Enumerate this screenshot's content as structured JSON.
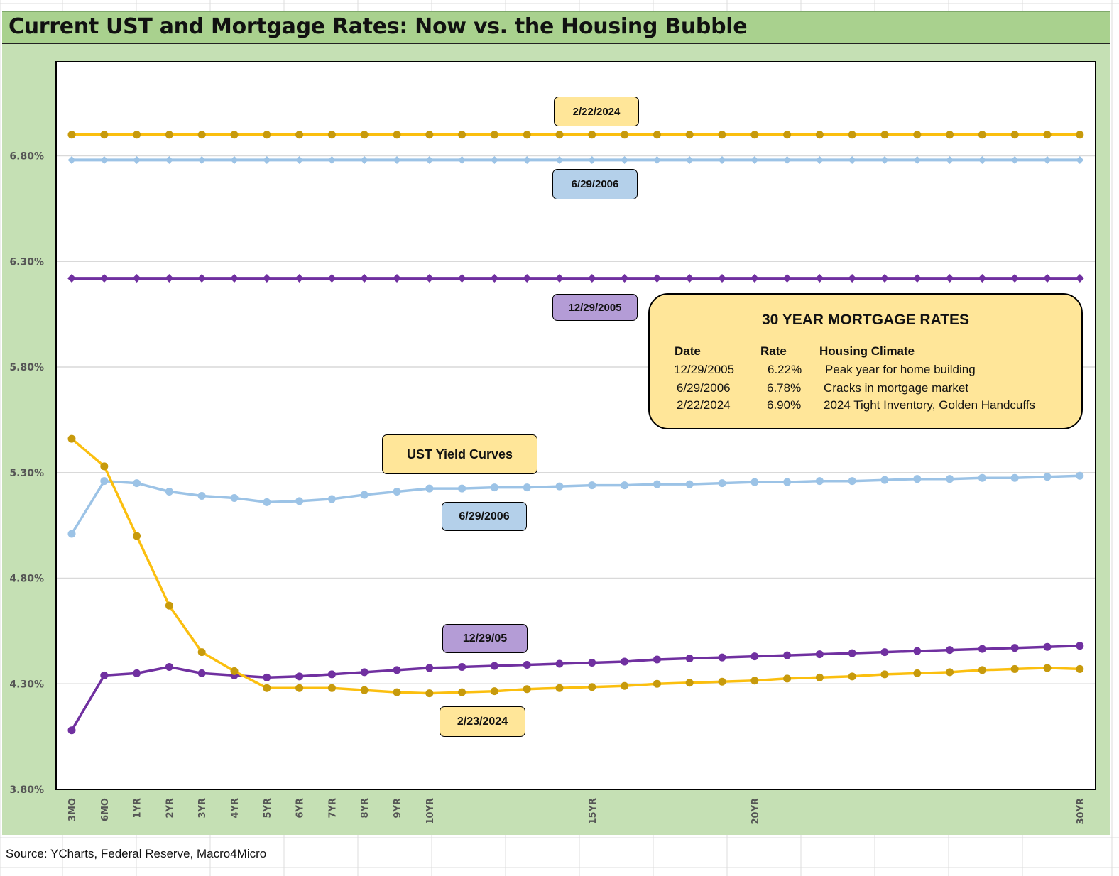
{
  "title": "Current UST and Mortgage Rates: Now vs. the Housing Bubble",
  "source": "Source: YCharts, Federal Reserve, Macro4Micro",
  "colors": {
    "yellow_line": "#fbbf0f",
    "yellow_marker": "#c79a0c",
    "blue_line": "#9cc3e6",
    "purple_line": "#7030a0",
    "title_bg": "#a9d18e",
    "panel_bg": "#c5e0b4"
  },
  "labels": {
    "mortgage_2024": "2/22/2024",
    "mortgage_2006": "6/29/2006",
    "mortgage_2005": "12/29/2005",
    "ust_header": "UST Yield Curves",
    "ust_2006": "6/29/2006",
    "ust_2005": "12/29/05",
    "ust_2024": "2/23/2024"
  },
  "mortgage_table": {
    "title": "30 YEAR MORTGAGE RATES",
    "headers": [
      "Date",
      "Rate",
      "Housing Climate"
    ],
    "rows": [
      [
        "12/29/2005",
        "6.22%",
        "Peak year for home building"
      ],
      [
        "6/29/2006",
        "6.78%",
        "Cracks in mortgage market"
      ],
      [
        "2/22/2024",
        "6.90%",
        "2024 Tight Inventory, Golden Handcuffs"
      ]
    ]
  },
  "chart_data": {
    "type": "line",
    "title": "Current UST and Mortgage Rates: Now vs. the Housing Bubble",
    "xlabel": "",
    "ylabel": "",
    "ylim": [
      3.8,
      7.25
    ],
    "yticks": [
      "3.80%",
      "4.30%",
      "4.80%",
      "5.30%",
      "5.80%",
      "6.30%",
      "6.80%"
    ],
    "grid": "horizontal",
    "x_tick_labels": [
      "3MO",
      "6MO",
      "1YR",
      "2YR",
      "3YR",
      "4YR",
      "5YR",
      "6YR",
      "7YR",
      "8YR",
      "9YR",
      "10YR",
      "",
      "",
      "",
      "",
      "15YR",
      "",
      "",
      "",
      "",
      "20YR",
      "",
      "",
      "",
      "",
      "",
      "",
      "",
      "",
      "",
      "30YR"
    ],
    "series": [
      {
        "name": "2/22/2024",
        "kind": "mortgage",
        "color": "#fbbf0f",
        "marker": "circle",
        "values": [
          6.9,
          6.9,
          6.9,
          6.9,
          6.9,
          6.9,
          6.9,
          6.9,
          6.9,
          6.9,
          6.9,
          6.9,
          6.9,
          6.9,
          6.9,
          6.9,
          6.9,
          6.9,
          6.9,
          6.9,
          6.9,
          6.9,
          6.9,
          6.9,
          6.9,
          6.9,
          6.9,
          6.9,
          6.9,
          6.9,
          6.9,
          6.9
        ]
      },
      {
        "name": "6/29/2006",
        "kind": "mortgage",
        "color": "#9cc3e6",
        "marker": "diamond",
        "values": [
          6.78,
          6.78,
          6.78,
          6.78,
          6.78,
          6.78,
          6.78,
          6.78,
          6.78,
          6.78,
          6.78,
          6.78,
          6.78,
          6.78,
          6.78,
          6.78,
          6.78,
          6.78,
          6.78,
          6.78,
          6.78,
          6.78,
          6.78,
          6.78,
          6.78,
          6.78,
          6.78,
          6.78,
          6.78,
          6.78,
          6.78,
          6.78
        ]
      },
      {
        "name": "12/29/2005",
        "kind": "mortgage",
        "color": "#7030a0",
        "marker": "diamond",
        "values": [
          6.22,
          6.22,
          6.22,
          6.22,
          6.22,
          6.22,
          6.22,
          6.22,
          6.22,
          6.22,
          6.22,
          6.22,
          6.22,
          6.22,
          6.22,
          6.22,
          6.22,
          6.22,
          6.22,
          6.22,
          6.22,
          6.22,
          6.22,
          6.22,
          6.22,
          6.22,
          6.22,
          6.22,
          6.22,
          6.22,
          6.22,
          6.22
        ]
      },
      {
        "name": "6/29/2006",
        "kind": "ust",
        "color": "#9cc3e6",
        "marker": "circle",
        "values": [
          5.01,
          5.26,
          5.25,
          5.21,
          5.19,
          5.18,
          5.16,
          5.165,
          5.175,
          5.195,
          5.21,
          5.225,
          5.225,
          5.23,
          5.23,
          5.235,
          5.24,
          5.24,
          5.245,
          5.245,
          5.25,
          5.255,
          5.255,
          5.26,
          5.26,
          5.265,
          5.27,
          5.27,
          5.275,
          5.275,
          5.28,
          5.285
        ]
      },
      {
        "name": "12/29/05",
        "kind": "ust",
        "color": "#7030a0",
        "marker": "circle",
        "values": [
          4.08,
          4.34,
          4.35,
          4.38,
          4.35,
          4.34,
          4.33,
          4.335,
          4.345,
          4.355,
          4.365,
          4.375,
          4.38,
          4.385,
          4.39,
          4.395,
          4.4,
          4.405,
          4.415,
          4.42,
          4.425,
          4.43,
          4.435,
          4.44,
          4.445,
          4.45,
          4.455,
          4.46,
          4.465,
          4.47,
          4.475,
          4.48
        ]
      },
      {
        "name": "2/23/2024",
        "kind": "ust",
        "color": "#fbbf0f",
        "marker": "circle",
        "values": [
          5.46,
          5.33,
          5.0,
          4.67,
          4.45,
          4.36,
          4.28,
          4.28,
          4.28,
          4.27,
          4.26,
          4.255,
          4.26,
          4.265,
          4.275,
          4.28,
          4.285,
          4.29,
          4.3,
          4.305,
          4.31,
          4.315,
          4.325,
          4.33,
          4.335,
          4.345,
          4.35,
          4.355,
          4.365,
          4.37,
          4.375,
          4.37
        ]
      }
    ]
  }
}
